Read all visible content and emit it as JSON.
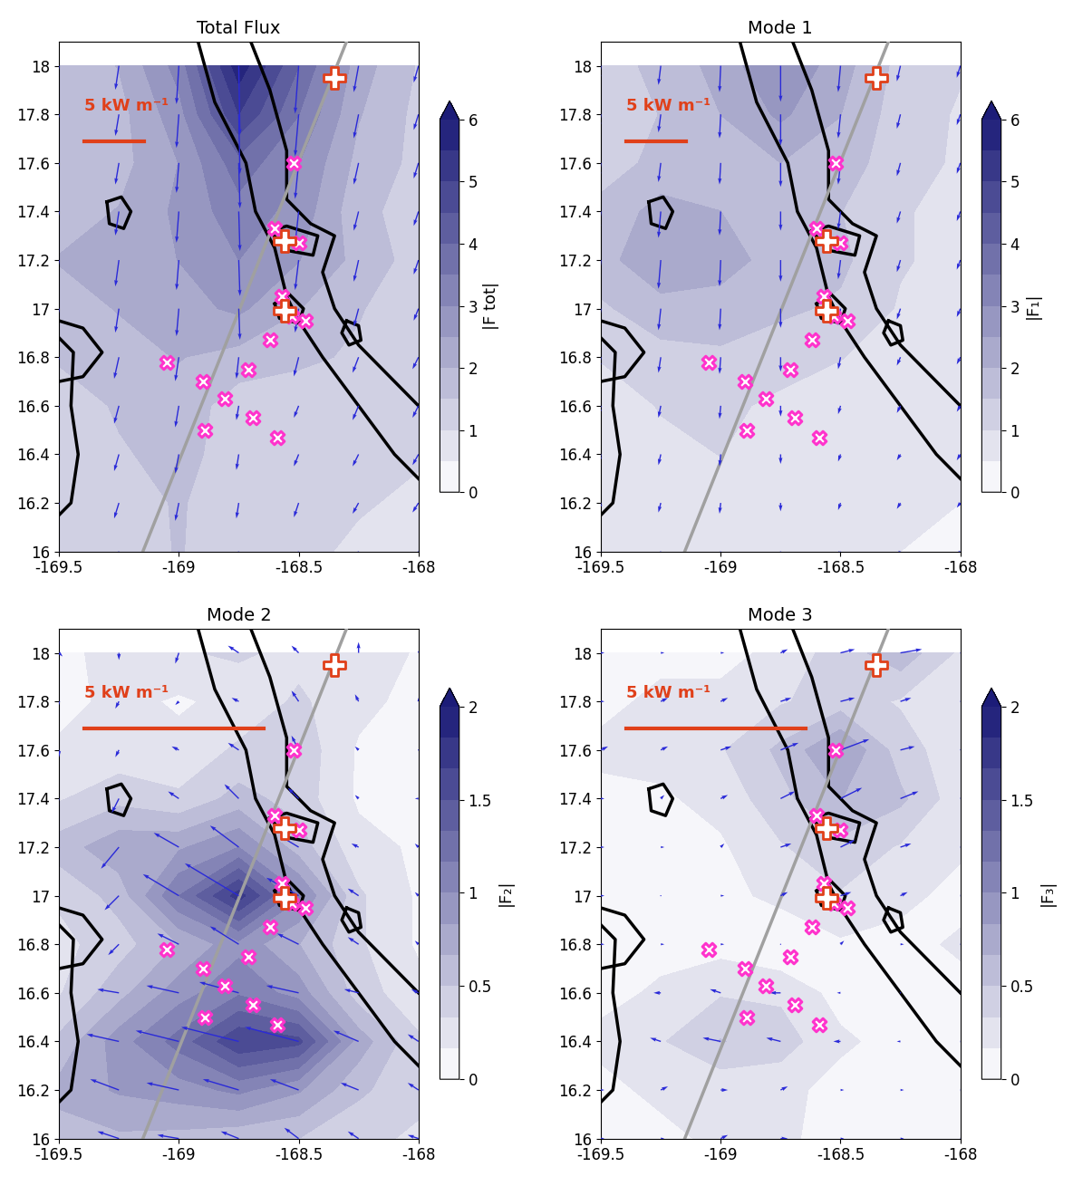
{
  "chart_data": [
    {
      "type": "map",
      "title": "Total Flux",
      "xlim": [
        -169.5,
        -168
      ],
      "ylim": [
        16,
        18.1
      ],
      "xticks": [
        -169.5,
        -169,
        -168.5,
        -168
      ],
      "yticks": [
        16,
        16.2,
        16.4,
        16.6,
        16.8,
        17,
        17.2,
        17.4,
        17.6,
        17.8,
        18
      ],
      "lon": [
        -169.5,
        -169.25,
        -169,
        -168.75,
        -168.5,
        -168.25,
        -168
      ],
      "lat": [
        16,
        16.2,
        16.4,
        16.6,
        16.8,
        17,
        17.2,
        17.4,
        17.6,
        17.8,
        18
      ],
      "u": [
        [
          -0.4,
          -0.4,
          -0.3,
          -0.2,
          -0.4,
          -0.5,
          -0.5
        ],
        [
          -0.4,
          -0.4,
          -0.3,
          -0.2,
          -0.4,
          -0.5,
          -0.5
        ],
        [
          -0.4,
          -0.4,
          -0.3,
          -0.2,
          -0.4,
          -0.5,
          -0.5
        ],
        [
          -0.4,
          -0.4,
          -0.3,
          -0.2,
          -0.4,
          -0.5,
          -0.5
        ],
        [
          -0.4,
          -0.4,
          -0.3,
          -0.2,
          -0.4,
          -0.5,
          -0.5
        ],
        [
          -0.3,
          -0.3,
          -0.2,
          0.1,
          -0.3,
          -0.4,
          -0.4
        ],
        [
          -0.3,
          -0.3,
          -0.2,
          0.1,
          -0.3,
          -0.4,
          -0.4
        ],
        [
          -0.3,
          -0.3,
          -0.2,
          0.1,
          -0.3,
          -0.4,
          -0.4
        ],
        [
          -0.3,
          -0.3,
          -0.2,
          0.1,
          -0.3,
          -0.4,
          -0.4
        ],
        [
          -0.3,
          -0.3,
          -0.2,
          0.1,
          -0.3,
          -0.4,
          -0.4
        ],
        [
          -0.3,
          -0.3,
          -0.2,
          0.1,
          -0.3,
          -0.4,
          -0.4
        ]
      ],
      "v": [
        [
          -1.0,
          -1.2,
          -1.5,
          -1.2,
          -1.0,
          -0.8,
          -0.8
        ],
        [
          -1.0,
          -1.3,
          -1.5,
          -1.3,
          -1.2,
          -0.9,
          -0.8
        ],
        [
          -1.1,
          -1.4,
          -1.6,
          -1.3,
          -1.0,
          -1.0,
          -0.9
        ],
        [
          -1.2,
          -1.5,
          -1.8,
          -1.2,
          -1.0,
          -1.2,
          -1.0
        ],
        [
          -1.5,
          -1.8,
          -2.0,
          -1.8,
          -1.6,
          -1.3,
          -1.0
        ],
        [
          -1.8,
          -2.0,
          -2.3,
          -2.6,
          -2.0,
          -1.5,
          -1.0
        ],
        [
          -2.0,
          -2.2,
          -2.5,
          -3.0,
          -2.5,
          -1.8,
          -1.2
        ],
        [
          -1.8,
          -2.0,
          -2.6,
          -3.3,
          -2.8,
          -1.6,
          -1.2
        ],
        [
          -1.5,
          -1.8,
          -2.5,
          -3.8,
          -3.0,
          -1.8,
          -1.3
        ],
        [
          -1.5,
          -1.8,
          -2.8,
          -5.0,
          -3.5,
          -2.0,
          -1.3
        ],
        [
          -1.6,
          -2.0,
          -3.2,
          -5.8,
          -4.0,
          -2.2,
          -1.4
        ]
      ],
      "colorbar": {
        "label": "|F tot|",
        "range": [
          0,
          6
        ],
        "ticks": [
          0,
          1,
          2,
          3,
          4,
          5,
          6
        ]
      },
      "scale_bar": {
        "label": "5 kW m⁻¹",
        "value": 5
      }
    },
    {
      "type": "map",
      "title": "Mode 1",
      "xlim": [
        -169.5,
        -168
      ],
      "ylim": [
        16,
        18.1
      ],
      "xticks": [
        -169.5,
        -169,
        -168.5,
        -168
      ],
      "yticks": [
        16,
        16.2,
        16.4,
        16.6,
        16.8,
        17,
        17.2,
        17.4,
        17.6,
        17.8,
        18
      ],
      "lon": [
        -169.5,
        -169.25,
        -169,
        -168.75,
        -168.5,
        -168.25,
        -168
      ],
      "lat": [
        16,
        16.2,
        16.4,
        16.6,
        16.8,
        17,
        17.2,
        17.4,
        17.6,
        17.8,
        18
      ],
      "u": [
        [
          -0.2,
          -0.2,
          -0.1,
          0.0,
          -0.2,
          -0.3,
          -0.3
        ],
        [
          -0.2,
          -0.2,
          -0.1,
          0.0,
          -0.2,
          -0.3,
          -0.3
        ],
        [
          -0.2,
          -0.2,
          -0.1,
          0.0,
          -0.2,
          -0.3,
          -0.3
        ],
        [
          -0.2,
          -0.2,
          -0.1,
          0.0,
          -0.2,
          -0.3,
          -0.3
        ],
        [
          -0.2,
          -0.2,
          -0.1,
          0.0,
          -0.2,
          -0.3,
          -0.3
        ],
        [
          -0.2,
          -0.2,
          -0.1,
          0.0,
          -0.2,
          -0.3,
          -0.3
        ],
        [
          -0.2,
          -0.2,
          -0.1,
          0.0,
          -0.2,
          -0.3,
          -0.3
        ],
        [
          -0.2,
          -0.2,
          -0.1,
          0.0,
          -0.2,
          -0.3,
          -0.3
        ],
        [
          -0.2,
          -0.2,
          -0.1,
          0.0,
          -0.2,
          -0.3,
          -0.3
        ],
        [
          -0.2,
          -0.2,
          -0.1,
          0.0,
          -0.2,
          -0.3,
          -0.3
        ],
        [
          -0.2,
          -0.2,
          -0.1,
          0.0,
          -0.2,
          -0.3,
          -0.3
        ]
      ],
      "v": [
        [
          -0.6,
          -0.7,
          -0.8,
          -0.6,
          -0.5,
          -0.4,
          -0.4
        ],
        [
          -0.6,
          -0.8,
          -0.9,
          -0.7,
          -0.6,
          -0.5,
          -0.4
        ],
        [
          -0.7,
          -0.9,
          -1.0,
          -0.8,
          -0.6,
          -0.5,
          -0.5
        ],
        [
          -0.8,
          -1.0,
          -1.1,
          -0.9,
          -0.7,
          -0.6,
          -0.5
        ],
        [
          -1.0,
          -1.3,
          -1.4,
          -1.2,
          -1.0,
          -0.7,
          -0.6
        ],
        [
          -1.4,
          -1.8,
          -1.8,
          -1.6,
          -1.4,
          -0.9,
          -0.7
        ],
        [
          -1.8,
          -2.4,
          -2.2,
          -1.8,
          -1.6,
          -1.0,
          -0.8
        ],
        [
          -1.6,
          -2.2,
          -2.0,
          -1.6,
          -1.5,
          -1.0,
          -0.8
        ],
        [
          -1.3,
          -1.6,
          -1.8,
          -2.0,
          -1.8,
          -1.1,
          -0.9
        ],
        [
          -1.2,
          -1.5,
          -2.0,
          -2.6,
          -2.0,
          -1.2,
          -0.9
        ],
        [
          -1.3,
          -1.6,
          -2.2,
          -3.0,
          -2.2,
          -1.3,
          -1.0
        ]
      ],
      "colorbar": {
        "label": "|F₁|",
        "range": [
          0,
          6
        ],
        "ticks": [
          0,
          1,
          2,
          3,
          4,
          5,
          6
        ]
      },
      "scale_bar": {
        "label": "5 kW m⁻¹",
        "value": 5
      }
    },
    {
      "type": "map",
      "title": "Mode 2",
      "xlim": [
        -169.5,
        -168
      ],
      "ylim": [
        16,
        18.1
      ],
      "xticks": [
        -169.5,
        -169,
        -168.5,
        -168
      ],
      "yticks": [
        16,
        16.2,
        16.4,
        16.6,
        16.8,
        17,
        17.2,
        17.4,
        17.6,
        17.8,
        18
      ],
      "lon": [
        -169.5,
        -169.25,
        -169,
        -168.75,
        -168.5,
        -168.25,
        -168
      ],
      "lat": [
        16,
        16.2,
        16.4,
        16.6,
        16.8,
        17,
        17.2,
        17.4,
        17.6,
        17.8,
        18
      ],
      "u": [
        [
          -0.5,
          -0.6,
          -0.6,
          -0.5,
          -0.4,
          -0.3,
          -0.3
        ],
        [
          -0.6,
          -0.8,
          -0.9,
          -1.0,
          -0.8,
          -0.5,
          -0.3
        ],
        [
          -0.5,
          -0.9,
          -1.2,
          -1.6,
          -1.5,
          -0.7,
          -0.3
        ],
        [
          -0.3,
          -0.6,
          -0.9,
          -1.1,
          -0.9,
          -0.4,
          -0.2
        ],
        [
          -0.2,
          -0.3,
          -0.6,
          -0.8,
          -0.6,
          -0.3,
          -0.1
        ],
        [
          -0.2,
          -0.4,
          -1.0,
          -1.5,
          -0.9,
          -0.3,
          -0.1
        ],
        [
          -0.3,
          -0.5,
          -0.7,
          -0.8,
          -0.5,
          -0.2,
          -0.1
        ],
        [
          -0.1,
          -0.2,
          -0.3,
          -0.4,
          -0.3,
          -0.1,
          -0.1
        ],
        [
          0.0,
          -0.1,
          -0.2,
          -0.3,
          -0.2,
          -0.1,
          0.0
        ],
        [
          0.0,
          -0.1,
          -0.1,
          -0.2,
          -0.2,
          -0.1,
          0.0
        ],
        [
          0.1,
          0.0,
          -0.1,
          -0.3,
          -0.2,
          0.0,
          0.1
        ]
      ],
      "v": [
        [
          0.3,
          0.2,
          0.1,
          0.2,
          0.3,
          0.2,
          0.1
        ],
        [
          0.4,
          0.3,
          0.2,
          0.3,
          0.3,
          0.2,
          0.2
        ],
        [
          0.2,
          0.2,
          0.3,
          0.4,
          0.4,
          0.3,
          0.2
        ],
        [
          -0.1,
          0.1,
          0.2,
          0.3,
          0.2,
          0.1,
          0.1
        ],
        [
          -0.2,
          -0.3,
          0.3,
          0.5,
          0.3,
          0.2,
          0.1
        ],
        [
          -0.3,
          -0.4,
          0.6,
          0.9,
          0.5,
          0.2,
          0.1
        ],
        [
          -0.5,
          -0.6,
          0.4,
          0.6,
          0.3,
          0.1,
          0.1
        ],
        [
          -0.3,
          -0.4,
          0.2,
          0.4,
          0.3,
          0.1,
          0.0
        ],
        [
          -0.2,
          -0.2,
          0.1,
          0.2,
          0.4,
          0.1,
          0.0
        ],
        [
          -0.1,
          -0.2,
          -0.1,
          0.1,
          0.3,
          0.2,
          0.1
        ],
        [
          -0.1,
          -0.2,
          -0.3,
          0.2,
          0.2,
          0.3,
          0.1
        ]
      ],
      "colorbar": {
        "label": "|F₂|",
        "range": [
          0,
          2
        ],
        "ticks": [
          0,
          0.5,
          1,
          1.5,
          2
        ]
      },
      "scale_bar": {
        "label": "5 kW m⁻¹",
        "value": 5
      }
    },
    {
      "type": "map",
      "title": "Mode 3",
      "xlim": [
        -169.5,
        -168
      ],
      "ylim": [
        16,
        18.1
      ],
      "xticks": [
        -169.5,
        -169,
        -168.5,
        -168
      ],
      "yticks": [
        16,
        16.2,
        16.4,
        16.6,
        16.8,
        17,
        17.2,
        17.4,
        17.6,
        17.8,
        18
      ],
      "lon": [
        -169.5,
        -169.25,
        -169,
        -168.75,
        -168.5,
        -168.25,
        -168
      ],
      "lat": [
        16,
        16.2,
        16.4,
        16.6,
        16.8,
        17,
        17.2,
        17.4,
        17.6,
        17.8,
        18
      ],
      "u": [
        [
          0.1,
          0.1,
          0.2,
          0.2,
          0.1,
          0.1,
          0.1
        ],
        [
          0.1,
          0.2,
          0.2,
          0.2,
          0.1,
          0.1,
          0.1
        ],
        [
          -0.2,
          -0.3,
          -0.5,
          -0.4,
          -0.2,
          -0.1,
          0.1
        ],
        [
          -0.1,
          -0.2,
          -0.3,
          -0.3,
          -0.1,
          0.0,
          0.1
        ],
        [
          0.1,
          0.1,
          0.1,
          0.0,
          0.1,
          0.1,
          0.2
        ],
        [
          0.1,
          0.0,
          0.1,
          0.2,
          0.3,
          0.2,
          0.1
        ],
        [
          0.1,
          0.1,
          0.1,
          0.3,
          0.4,
          0.3,
          0.2
        ],
        [
          0.1,
          0.1,
          0.2,
          0.4,
          0.6,
          0.5,
          0.2
        ],
        [
          0.2,
          0.2,
          0.3,
          0.5,
          0.8,
          0.4,
          0.2
        ],
        [
          0.1,
          0.2,
          0.2,
          0.3,
          0.4,
          0.3,
          0.2
        ],
        [
          0.1,
          0.1,
          0.1,
          0.2,
          0.4,
          0.6,
          0.3
        ]
      ],
      "v": [
        [
          0.0,
          0.0,
          0.1,
          0.0,
          0.0,
          0.0,
          0.0
        ],
        [
          0.0,
          0.1,
          0.0,
          0.1,
          0.0,
          0.0,
          0.0
        ],
        [
          0.1,
          0.1,
          0.1,
          0.1,
          0.0,
          0.0,
          0.0
        ],
        [
          0.0,
          0.0,
          0.1,
          0.0,
          0.0,
          0.0,
          0.0
        ],
        [
          0.0,
          0.0,
          0.0,
          0.0,
          0.1,
          0.0,
          0.0
        ],
        [
          0.0,
          0.0,
          0.0,
          0.1,
          0.1,
          0.1,
          0.0
        ],
        [
          0.0,
          0.0,
          0.1,
          0.1,
          0.2,
          0.1,
          0.0
        ],
        [
          0.0,
          0.1,
          0.1,
          0.2,
          0.3,
          0.2,
          0.1
        ],
        [
          0.1,
          0.1,
          0.1,
          0.2,
          0.3,
          0.1,
          0.1
        ],
        [
          0.0,
          0.1,
          0.1,
          0.1,
          0.1,
          0.1,
          0.0
        ],
        [
          0.0,
          0.0,
          0.0,
          0.1,
          0.1,
          0.1,
          0.0
        ]
      ],
      "colorbar": {
        "label": "|F₃|",
        "range": [
          0,
          2
        ],
        "ticks": [
          0,
          0.5,
          1,
          1.5,
          2
        ]
      },
      "scale_bar": {
        "label": "5 kW m⁻¹",
        "value": 5
      }
    }
  ],
  "map_features": {
    "bathymetry_contours": [
      [
        [
          -168.92,
          18.1
        ],
        [
          -168.85,
          17.85
        ],
        [
          -168.72,
          17.6
        ],
        [
          -168.68,
          17.4
        ],
        [
          -168.6,
          17.25
        ],
        [
          -168.55,
          17.05
        ],
        [
          -168.5,
          16.95
        ],
        [
          -168.4,
          16.8
        ],
        [
          -168.25,
          16.6
        ],
        [
          -168.1,
          16.4
        ],
        [
          -168.0,
          16.3
        ]
      ],
      [
        [
          -168.7,
          18.1
        ],
        [
          -168.62,
          17.9
        ],
        [
          -168.55,
          17.65
        ],
        [
          -168.55,
          17.45
        ],
        [
          -168.45,
          17.35
        ],
        [
          -168.35,
          17.3
        ],
        [
          -168.4,
          17.15
        ],
        [
          -168.35,
          17.0
        ],
        [
          -168.25,
          16.85
        ],
        [
          -168.1,
          16.7
        ],
        [
          -168.0,
          16.6
        ]
      ],
      [
        [
          -168.62,
          17.32
        ],
        [
          -168.55,
          17.34
        ],
        [
          -168.42,
          17.3
        ],
        [
          -168.44,
          17.22
        ],
        [
          -168.55,
          17.24
        ],
        [
          -168.62,
          17.32
        ]
      ],
      [
        [
          -168.6,
          17.02
        ],
        [
          -168.54,
          17.06
        ],
        [
          -168.48,
          17.0
        ],
        [
          -168.5,
          16.94
        ],
        [
          -168.58,
          16.96
        ],
        [
          -168.6,
          17.02
        ]
      ],
      [
        [
          -169.3,
          17.44
        ],
        [
          -169.24,
          17.46
        ],
        [
          -169.2,
          17.4
        ],
        [
          -169.23,
          17.33
        ],
        [
          -169.29,
          17.35
        ],
        [
          -169.3,
          17.44
        ]
      ],
      [
        [
          -168.3,
          16.95
        ],
        [
          -168.25,
          16.93
        ],
        [
          -168.24,
          16.87
        ],
        [
          -168.29,
          16.85
        ],
        [
          -168.32,
          16.9
        ],
        [
          -168.3,
          16.95
        ]
      ],
      [
        [
          -169.5,
          16.95
        ],
        [
          -169.4,
          16.92
        ],
        [
          -169.32,
          16.82
        ],
        [
          -169.4,
          16.72
        ],
        [
          -169.5,
          16.7
        ]
      ],
      [
        [
          -169.5,
          16.88
        ],
        [
          -169.44,
          16.82
        ],
        [
          -169.45,
          16.6
        ],
        [
          -169.42,
          16.4
        ],
        [
          -169.45,
          16.2
        ],
        [
          -169.5,
          16.15
        ]
      ]
    ],
    "moorings": [
      [
        -168.52,
        17.6
      ],
      [
        -168.6,
        17.33
      ],
      [
        -168.5,
        17.27
      ],
      [
        -168.57,
        17.05
      ],
      [
        -168.53,
        16.97
      ],
      [
        -168.47,
        16.95
      ],
      [
        -168.62,
        16.87
      ],
      [
        -168.71,
        16.75
      ],
      [
        -168.81,
        16.63
      ],
      [
        -168.9,
        16.7
      ],
      [
        -169.05,
        16.78
      ],
      [
        -168.89,
        16.5
      ],
      [
        -168.69,
        16.55
      ],
      [
        -168.59,
        16.47
      ]
    ],
    "stations": [
      [
        -168.35,
        17.95
      ],
      [
        -168.56,
        17.28
      ],
      [
        -168.56,
        16.99
      ]
    ],
    "section_line": [
      [
        -169.15,
        16.0
      ],
      [
        -168.3,
        18.1
      ]
    ]
  }
}
